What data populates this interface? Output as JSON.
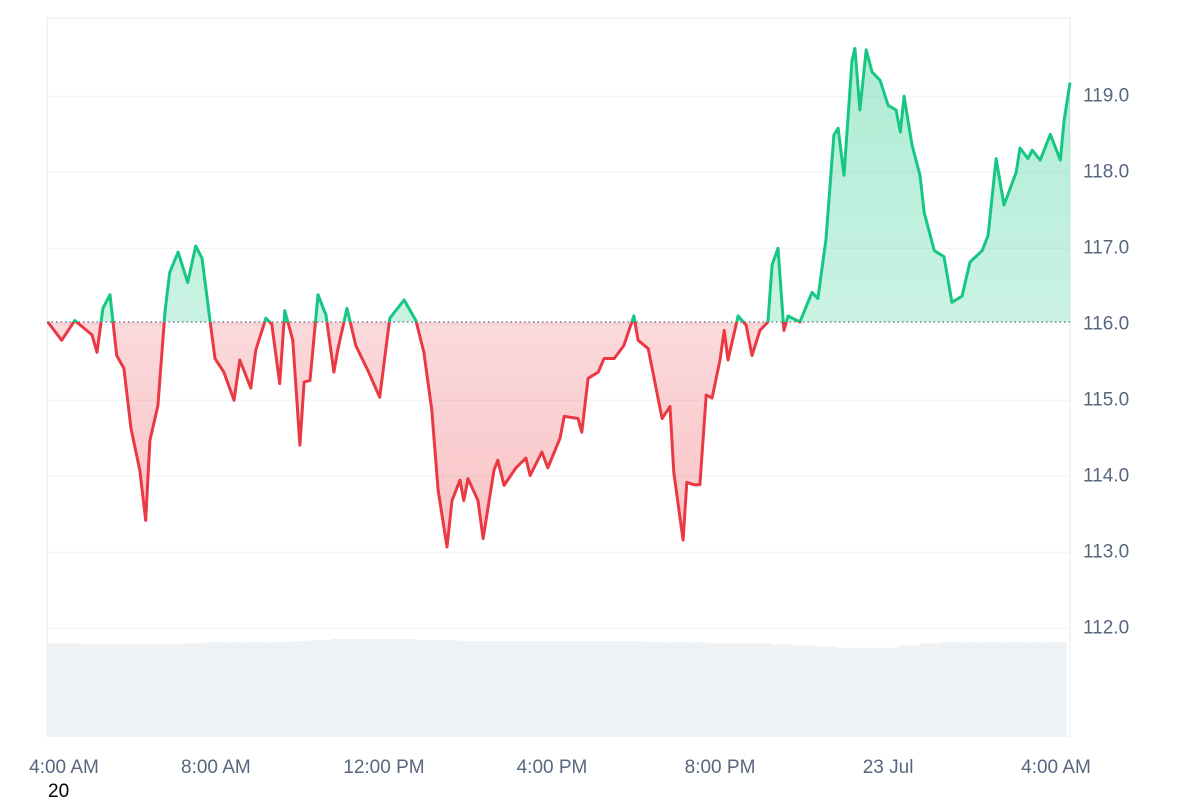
{
  "chart_data": {
    "type": "line",
    "x": [
      0.0,
      0.33,
      0.64,
      1.05,
      1.17,
      1.31,
      1.48,
      1.64,
      1.81,
      1.98,
      2.19,
      2.33,
      2.43,
      2.62,
      2.79,
      2.9,
      3.1,
      3.33,
      3.52,
      3.67,
      3.86,
      3.98,
      4.19,
      4.43,
      4.57,
      4.83,
      4.95,
      5.19,
      5.33,
      5.52,
      5.64,
      5.83,
      6.0,
      6.1,
      6.24,
      6.43,
      6.62,
      6.81,
      6.9,
      7.12,
      7.33,
      7.62,
      7.9,
      8.14,
      8.48,
      8.76,
      8.95,
      9.14,
      9.29,
      9.5,
      9.62,
      9.81,
      9.9,
      10.0,
      10.24,
      10.36,
      10.62,
      10.71,
      10.86,
      11.14,
      11.38,
      11.48,
      11.76,
      11.9,
      12.19,
      12.29,
      12.62,
      12.71,
      12.86,
      13.1,
      13.24,
      13.48,
      13.71,
      13.95,
      14.05,
      14.29,
      14.43,
      14.62,
      14.81,
      14.9,
      15.12,
      15.21,
      15.38,
      15.52,
      15.67,
      15.81,
      16.0,
      16.1,
      16.19,
      16.43,
      16.62,
      16.76,
      16.95,
      17.14,
      17.24,
      17.38,
      17.52,
      17.62,
      17.9,
      18.19,
      18.33,
      18.52,
      18.71,
      18.81,
      18.95,
      19.14,
      19.21,
      19.33,
      19.48,
      19.62,
      19.81,
      20.0,
      20.19,
      20.29,
      20.38,
      20.57,
      20.76,
      20.86,
      21.1,
      21.33,
      21.52,
      21.76,
      21.95,
      22.24,
      22.38,
      22.57,
      22.76,
      23.05,
      23.14,
      23.33,
      23.43,
      23.62,
      23.86,
      24.1,
      24.19,
      24.33
    ],
    "series": [
      {
        "values": [
          116.03,
          115.79,
          116.05,
          115.86,
          115.63,
          116.21,
          116.39,
          115.59,
          115.42,
          114.63,
          114.08,
          113.42,
          114.47,
          114.93,
          116.18,
          116.68,
          116.95,
          116.55,
          117.03,
          116.87,
          116.05,
          115.55,
          115.37,
          115.0,
          115.53,
          115.16,
          115.66,
          116.08,
          116.0,
          115.22,
          116.18,
          115.79,
          114.41,
          115.24,
          115.26,
          116.39,
          116.12,
          115.37,
          115.66,
          116.21,
          115.72,
          115.39,
          115.04,
          116.08,
          116.32,
          116.05,
          115.63,
          114.87,
          113.82,
          113.07,
          113.68,
          113.95,
          113.68,
          113.97,
          113.68,
          113.18,
          114.08,
          114.21,
          113.88,
          114.11,
          114.24,
          114.01,
          114.32,
          114.11,
          114.5,
          114.79,
          114.76,
          114.58,
          115.29,
          115.37,
          115.55,
          115.55,
          115.72,
          116.11,
          115.79,
          115.68,
          115.29,
          114.76,
          114.92,
          114.05,
          113.16,
          113.92,
          113.89,
          113.89,
          115.07,
          115.03,
          115.53,
          115.92,
          115.53,
          116.11,
          115.99,
          115.59,
          115.92,
          116.03,
          116.78,
          117.0,
          115.92,
          116.11,
          116.03,
          116.42,
          116.34,
          117.11,
          118.49,
          118.58,
          117.96,
          119.47,
          119.63,
          118.82,
          119.61,
          119.32,
          119.21,
          118.88,
          118.82,
          118.53,
          119.0,
          118.36,
          117.96,
          117.47,
          116.97,
          116.89,
          116.29,
          116.37,
          116.82,
          116.97,
          117.17,
          118.18,
          117.57,
          118.0,
          118.32,
          118.18,
          118.29,
          118.16,
          118.5,
          118.16,
          118.68,
          119.18
        ]
      }
    ],
    "baseline": 116.03,
    "up_color": "#16c784",
    "down_color": "#ea3943",
    "xlim": [
      -0.02,
      24.33
    ],
    "xticks": [
      {
        "value": 0,
        "label": "4:00 AM"
      },
      {
        "value": 4,
        "label": "8:00 AM"
      },
      {
        "value": 8,
        "label": "12:00 PM"
      },
      {
        "value": 12,
        "label": "4:00 PM"
      },
      {
        "value": 16,
        "label": "8:00 PM"
      },
      {
        "value": 20,
        "label": "23 Jul"
      },
      {
        "value": 24,
        "label": "4:00 AM"
      }
    ],
    "ylim": [
      110.57,
      120.03
    ],
    "yticks": [
      {
        "value": 112,
        "label": "112.0"
      },
      {
        "value": 113,
        "label": "113.0"
      },
      {
        "value": 114,
        "label": "114.0"
      },
      {
        "value": 115,
        "label": "115.0"
      },
      {
        "value": 116,
        "label": "116.0"
      },
      {
        "value": 117,
        "label": "117.0"
      },
      {
        "value": 118,
        "label": "118.0"
      },
      {
        "value": 119,
        "label": "119.0"
      }
    ],
    "grid": true,
    "volume": {
      "color": "#eff2f5",
      "ylim": [
        0,
        100
      ],
      "step": 0.5,
      "values": [
        87,
        87,
        86,
        86,
        86,
        86,
        86,
        87,
        88,
        88,
        88,
        88,
        89,
        90,
        91,
        91,
        91,
        91,
        90,
        90,
        89,
        89,
        89,
        89,
        89,
        89,
        89,
        89,
        89,
        88,
        88,
        88,
        87,
        87,
        87,
        86,
        85,
        84,
        83,
        83,
        83,
        85,
        87,
        88,
        88,
        88,
        88,
        88,
        88
      ]
    },
    "footnote": "20"
  }
}
